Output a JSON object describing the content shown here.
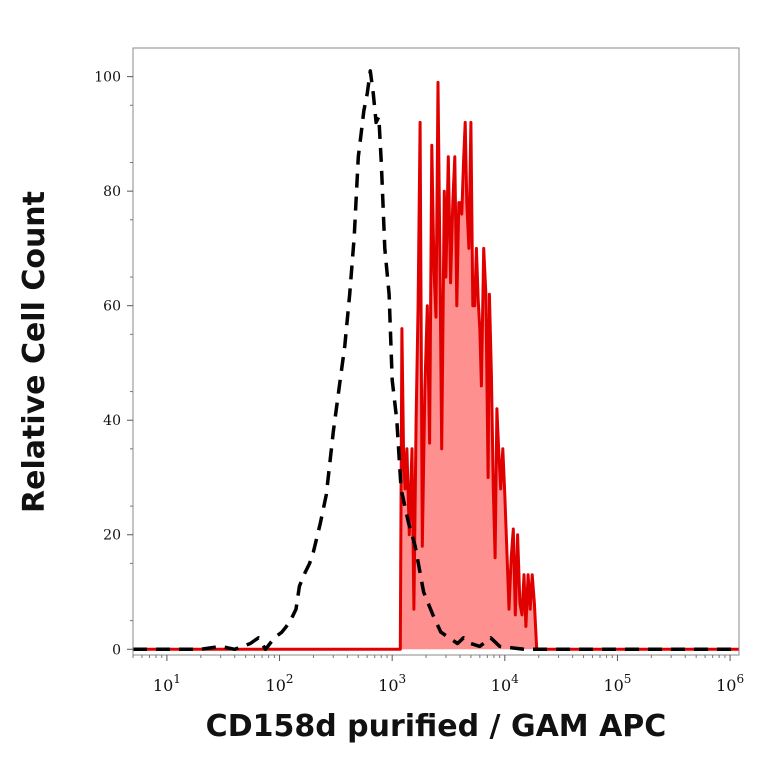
{
  "chart_data": {
    "type": "area",
    "xlabel": "CD158d purified / GAM APC",
    "ylabel": "Relative Cell Count",
    "x_scale": "log",
    "xlim": [
      5,
      1200000
    ],
    "ylim": [
      -1,
      105
    ],
    "x_ticks": [
      {
        "value": 10,
        "base": "10",
        "exp": "1"
      },
      {
        "value": 100,
        "base": "10",
        "exp": "2"
      },
      {
        "value": 1000,
        "base": "10",
        "exp": "3"
      },
      {
        "value": 10000,
        "base": "10",
        "exp": "4"
      },
      {
        "value": 100000,
        "base": "10",
        "exp": "5"
      },
      {
        "value": 1000000,
        "base": "10",
        "exp": "6"
      }
    ],
    "y_ticks": [
      {
        "value": 0,
        "label": "0"
      },
      {
        "value": 20,
        "label": "20"
      },
      {
        "value": 40,
        "label": "40"
      },
      {
        "value": 60,
        "label": "60"
      },
      {
        "value": 80,
        "label": "80"
      },
      {
        "value": 100,
        "label": "100"
      }
    ],
    "grid": false,
    "legend": "none",
    "series": [
      {
        "style": "dashed",
        "color": "#000000",
        "fill": "none",
        "points": [
          [
            5,
            0
          ],
          [
            20,
            0
          ],
          [
            30,
            0.5
          ],
          [
            40,
            0
          ],
          [
            55,
            1
          ],
          [
            65,
            2
          ],
          [
            75,
            0
          ],
          [
            90,
            2
          ],
          [
            105,
            3
          ],
          [
            115,
            4
          ],
          [
            125,
            5
          ],
          [
            140,
            7
          ],
          [
            150,
            11
          ],
          [
            165,
            13
          ],
          [
            185,
            15
          ],
          [
            200,
            17
          ],
          [
            230,
            22
          ],
          [
            260,
            27
          ],
          [
            300,
            38
          ],
          [
            340,
            46
          ],
          [
            380,
            53
          ],
          [
            420,
            62
          ],
          [
            460,
            72
          ],
          [
            500,
            86
          ],
          [
            530,
            90
          ],
          [
            560,
            94
          ],
          [
            600,
            97
          ],
          [
            640,
            101
          ],
          [
            680,
            97
          ],
          [
            720,
            92
          ],
          [
            760,
            93
          ],
          [
            800,
            85
          ],
          [
            860,
            70
          ],
          [
            940,
            62
          ],
          [
            1000,
            47
          ],
          [
            1100,
            40
          ],
          [
            1200,
            28
          ],
          [
            1400,
            22
          ],
          [
            1600,
            18
          ],
          [
            1900,
            10
          ],
          [
            2300,
            6
          ],
          [
            2700,
            3
          ],
          [
            3200,
            2
          ],
          [
            3800,
            1
          ],
          [
            4300,
            2
          ],
          [
            5000,
            1
          ],
          [
            6000,
            0.5
          ],
          [
            7500,
            2
          ],
          [
            9000,
            0.5
          ],
          [
            15000,
            0
          ],
          [
            1200000,
            0
          ]
        ]
      },
      {
        "style": "solid",
        "color": "#e00000",
        "fill": "#ff9090",
        "points": [
          [
            5,
            0
          ],
          [
            1000,
            0
          ],
          [
            1180,
            0
          ],
          [
            1220,
            56
          ],
          [
            1260,
            35
          ],
          [
            1300,
            28
          ],
          [
            1350,
            35
          ],
          [
            1420,
            20
          ],
          [
            1500,
            35
          ],
          [
            1560,
            7
          ],
          [
            1630,
            40
          ],
          [
            1700,
            60
          ],
          [
            1770,
            92
          ],
          [
            1850,
            18
          ],
          [
            1950,
            45
          ],
          [
            2050,
            60
          ],
          [
            2150,
            36
          ],
          [
            2250,
            88
          ],
          [
            2350,
            66
          ],
          [
            2450,
            58
          ],
          [
            2550,
            99
          ],
          [
            2650,
            70
          ],
          [
            2750,
            35
          ],
          [
            2900,
            80
          ],
          [
            3000,
            65
          ],
          [
            3150,
            86
          ],
          [
            3300,
            64
          ],
          [
            3450,
            78
          ],
          [
            3600,
            86
          ],
          [
            3750,
            60
          ],
          [
            3900,
            78
          ],
          [
            4000,
            78
          ],
          [
            4150,
            76
          ],
          [
            4300,
            85
          ],
          [
            4450,
            92
          ],
          [
            4600,
            78
          ],
          [
            4800,
            70
          ],
          [
            5000,
            92
          ],
          [
            5200,
            60
          ],
          [
            5400,
            60
          ],
          [
            5600,
            70
          ],
          [
            5800,
            61
          ],
          [
            6000,
            56
          ],
          [
            6200,
            46
          ],
          [
            6500,
            70
          ],
          [
            6800,
            62
          ],
          [
            7100,
            30
          ],
          [
            7300,
            62
          ],
          [
            7600,
            48
          ],
          [
            7900,
            28
          ],
          [
            8200,
            16
          ],
          [
            8500,
            42
          ],
          [
            8800,
            35
          ],
          [
            9200,
            28
          ],
          [
            9600,
            35
          ],
          [
            10000,
            27
          ],
          [
            10400,
            18
          ],
          [
            10900,
            7
          ],
          [
            11400,
            16
          ],
          [
            11900,
            21
          ],
          [
            12400,
            6
          ],
          [
            13000,
            20
          ],
          [
            13600,
            8
          ],
          [
            14200,
            6
          ],
          [
            14800,
            13
          ],
          [
            15400,
            4
          ],
          [
            16100,
            13
          ],
          [
            16800,
            7
          ],
          [
            17500,
            13
          ],
          [
            18300,
            8
          ],
          [
            19200,
            0
          ],
          [
            30000,
            0
          ],
          [
            1200000,
            0
          ]
        ]
      }
    ]
  }
}
